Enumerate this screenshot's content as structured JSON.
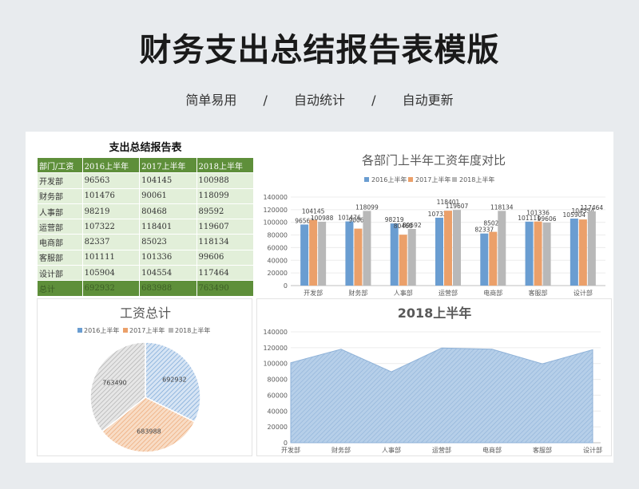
{
  "page": {
    "title": "财务支出总结报告表模版",
    "tags": [
      "简单易用",
      "自动统计",
      "自动更新"
    ],
    "separator": "/"
  },
  "table": {
    "title": "支出总结报告表",
    "headers": [
      "部门/工资",
      "2016上半年",
      "2017上半年",
      "2018上半年"
    ],
    "rows": [
      [
        "开发部",
        "96563",
        "104145",
        "100988"
      ],
      [
        "财务部",
        "101476",
        "90061",
        "118099"
      ],
      [
        "人事部",
        "98219",
        "80468",
        "89592"
      ],
      [
        "运营部",
        "107322",
        "118401",
        "119607"
      ],
      [
        "电商部",
        "82337",
        "85023",
        "118134"
      ],
      [
        "客服部",
        "101111",
        "101336",
        "99606"
      ],
      [
        "设计部",
        "105904",
        "104554",
        "117464"
      ]
    ],
    "total": [
      "总计",
      "692932",
      "683988",
      "763490"
    ]
  },
  "colors": {
    "s2016": "#6a9dd1",
    "s2017": "#eba06a",
    "s2018": "#b8b8b8",
    "green": "#5e8f3a",
    "area": "#b6cfe9"
  },
  "chart_data": [
    {
      "type": "bar",
      "title": "各部门上半年工资年度对比",
      "categories": [
        "开发部",
        "财务部",
        "人事部",
        "运营部",
        "电商部",
        "客服部",
        "设计部"
      ],
      "series": [
        {
          "name": "2016上半年",
          "values": [
            96563,
            101476,
            98219,
            107322,
            82337,
            101111,
            105904
          ]
        },
        {
          "name": "2017上半年",
          "values": [
            104145,
            90061,
            80468,
            118401,
            85023,
            101336,
            104554
          ]
        },
        {
          "name": "2018上半年",
          "values": [
            100988,
            118099,
            89592,
            119607,
            118134,
            99606,
            117464
          ]
        }
      ],
      "yticks": [
        "0",
        "20000",
        "40000",
        "60000",
        "80000",
        "100000",
        "120000",
        "140000"
      ],
      "ylim": [
        0,
        140000
      ],
      "legend": "top"
    },
    {
      "type": "pie",
      "title": "工资总计",
      "labels": [
        "2016上半年",
        "2017上半年",
        "2018上半年"
      ],
      "values": [
        692932,
        683988,
        763490
      ],
      "legend": "top"
    },
    {
      "type": "area",
      "title": "2018上半年",
      "categories": [
        "开发部",
        "财务部",
        "人事部",
        "运营部",
        "电商部",
        "客服部",
        "设计部"
      ],
      "values": [
        100988,
        118099,
        89592,
        119607,
        118134,
        99606,
        117464
      ],
      "yticks": [
        "0",
        "20000",
        "40000",
        "60000",
        "80000",
        "100000",
        "120000",
        "140000"
      ],
      "ylim": [
        0,
        140000
      ]
    }
  ]
}
